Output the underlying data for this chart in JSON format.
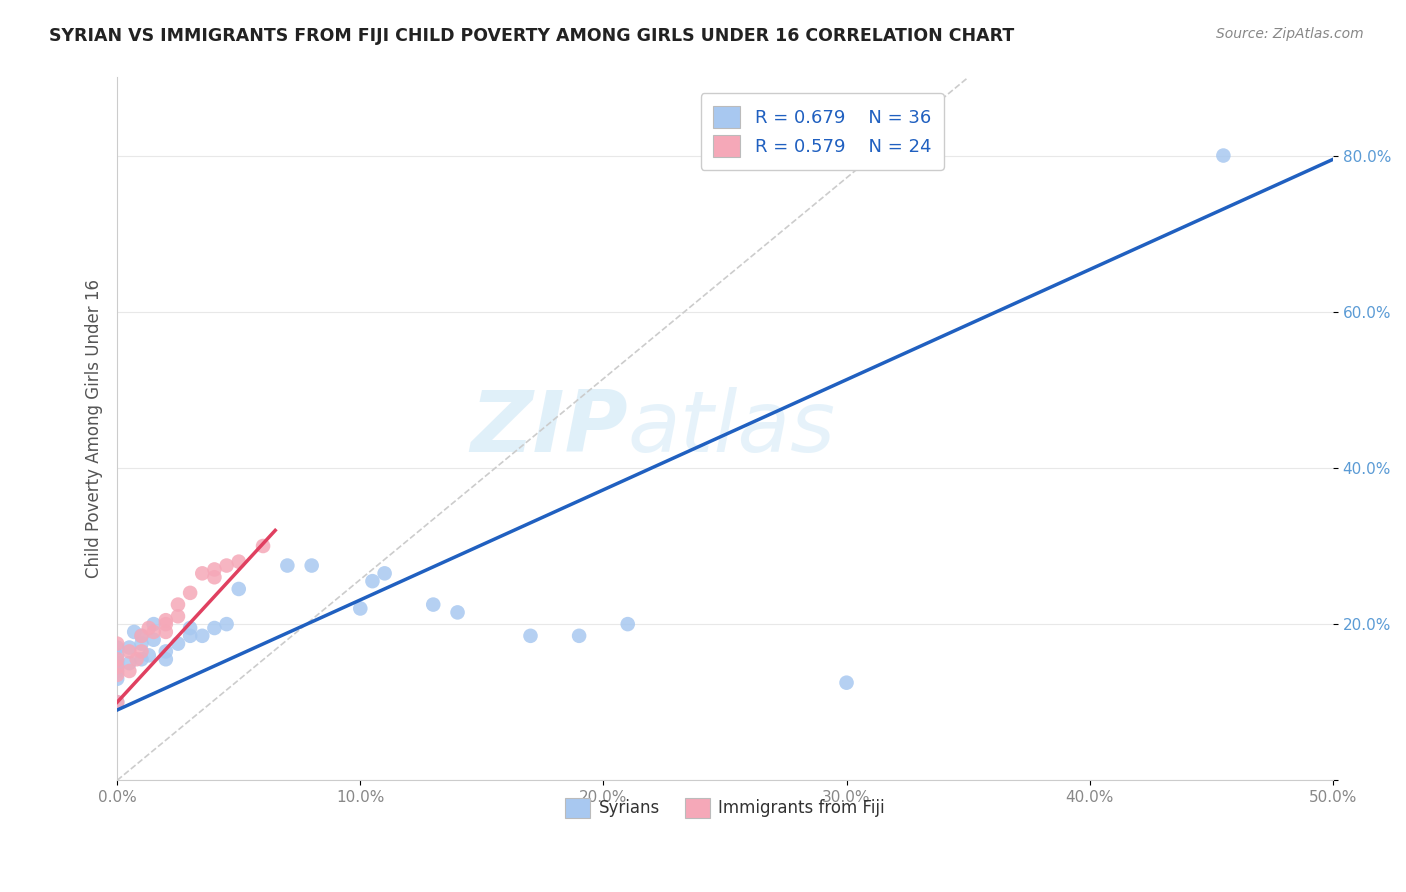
{
  "title": "SYRIAN VS IMMIGRANTS FROM FIJI CHILD POVERTY AMONG GIRLS UNDER 16 CORRELATION CHART",
  "source": "Source: ZipAtlas.com",
  "ylabel": "Child Poverty Among Girls Under 16",
  "xlim": [
    0,
    0.5
  ],
  "ylim": [
    0,
    0.9
  ],
  "xtick_vals": [
    0.0,
    0.1,
    0.2,
    0.3,
    0.4,
    0.5
  ],
  "xtick_labels": [
    "0.0%",
    "10.0%",
    "20.0%",
    "30.0%",
    "40.0%",
    "50.0%"
  ],
  "ytick_vals": [
    0.0,
    0.2,
    0.4,
    0.6,
    0.8
  ],
  "ytick_labels": [
    "",
    "20.0%",
    "40.0%",
    "60.0%",
    "80.0%"
  ],
  "legend_labels": [
    "Syrians",
    "Immigrants from Fiji"
  ],
  "r_syrian": 0.679,
  "n_syrian": 36,
  "r_fiji": 0.579,
  "n_fiji": 24,
  "color_syrian": "#a8c8f0",
  "color_fiji": "#f5a8b8",
  "line_color_syrian": "#2060c0",
  "line_color_fiji": "#e04060",
  "watermark_zip": "ZIP",
  "watermark_atlas": "atlas",
  "syrian_x": [
    0.0,
    0.0,
    0.0,
    0.0,
    0.0,
    0.0,
    0.005,
    0.005,
    0.007,
    0.01,
    0.01,
    0.01,
    0.013,
    0.015,
    0.015,
    0.02,
    0.02,
    0.025,
    0.03,
    0.03,
    0.035,
    0.04,
    0.045,
    0.05,
    0.07,
    0.08,
    0.1,
    0.105,
    0.11,
    0.13,
    0.14,
    0.17,
    0.19,
    0.21,
    0.3,
    0.455
  ],
  "syrian_y": [
    0.1,
    0.13,
    0.14,
    0.15,
    0.16,
    0.17,
    0.15,
    0.17,
    0.19,
    0.155,
    0.175,
    0.185,
    0.16,
    0.18,
    0.2,
    0.155,
    0.165,
    0.175,
    0.185,
    0.195,
    0.185,
    0.195,
    0.2,
    0.245,
    0.275,
    0.275,
    0.22,
    0.255,
    0.265,
    0.225,
    0.215,
    0.185,
    0.185,
    0.2,
    0.125,
    0.8
  ],
  "fiji_x": [
    0.0,
    0.0,
    0.0,
    0.0,
    0.0,
    0.005,
    0.005,
    0.008,
    0.01,
    0.01,
    0.013,
    0.015,
    0.02,
    0.02,
    0.02,
    0.025,
    0.025,
    0.03,
    0.035,
    0.04,
    0.04,
    0.045,
    0.05,
    0.06
  ],
  "fiji_y": [
    0.1,
    0.135,
    0.145,
    0.155,
    0.175,
    0.14,
    0.165,
    0.155,
    0.165,
    0.185,
    0.195,
    0.19,
    0.19,
    0.2,
    0.205,
    0.21,
    0.225,
    0.24,
    0.265,
    0.26,
    0.27,
    0.275,
    0.28,
    0.3
  ],
  "syr_line_x0": 0.0,
  "syr_line_x1": 0.5,
  "syr_line_y0": 0.09,
  "syr_line_y1": 0.795,
  "fij_line_x0": 0.0,
  "fij_line_x1": 0.065,
  "fij_line_y0": 0.1,
  "fij_line_y1": 0.32,
  "ref_line_x0": 0.0,
  "ref_line_x1": 0.35,
  "ref_line_y0": 0.0,
  "ref_line_y1": 0.9,
  "grid_color": "#e8e8e8",
  "tick_color_y": "#5b9bd5",
  "tick_color_x": "#888888",
  "title_color": "#222222",
  "source_color": "#888888",
  "ylabel_color": "#555555"
}
